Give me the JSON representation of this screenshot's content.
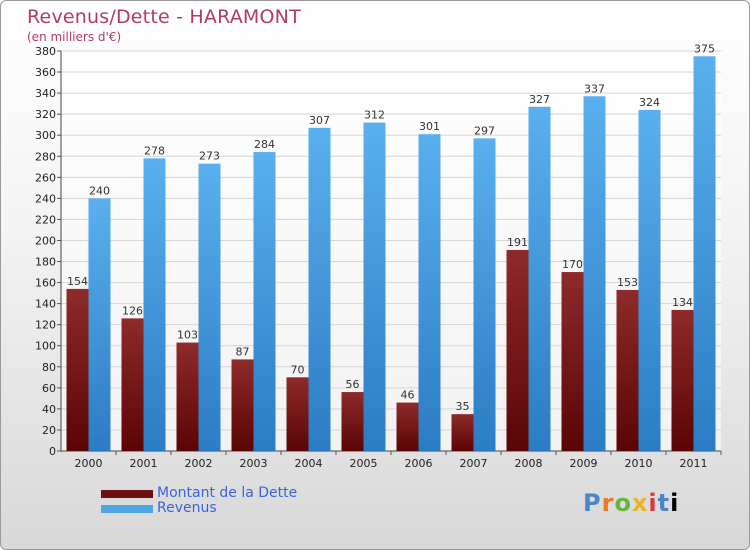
{
  "header": {
    "title": "Revenus/Dette - HARAMONT",
    "subtitle": "(en milliers d'€)"
  },
  "legend": {
    "items": [
      {
        "label": "Montant de la Dette",
        "color": "#6b0f0f"
      },
      {
        "label": "Revenus",
        "color": "#4ea6e6"
      }
    ]
  },
  "logo": {
    "text": "Proxiti"
  },
  "chart_data": {
    "type": "bar",
    "title": "Revenus/Dette - HARAMONT",
    "subtitle": "(en milliers d'€)",
    "categories": [
      "2000",
      "2001",
      "2002",
      "2003",
      "2004",
      "2005",
      "2006",
      "2007",
      "2008",
      "2009",
      "2010",
      "2011"
    ],
    "series": [
      {
        "name": "Montant de la Dette",
        "color": "#7a1a1a",
        "values": [
          154,
          126,
          103,
          87,
          70,
          56,
          46,
          35,
          191,
          170,
          153,
          134
        ]
      },
      {
        "name": "Revenus",
        "color": "#4ea6e6",
        "values": [
          240,
          278,
          273,
          284,
          307,
          312,
          301,
          297,
          327,
          337,
          324,
          375
        ]
      }
    ],
    "ylim": [
      0,
      380
    ],
    "ytick_step": 20,
    "grid": true,
    "legend_position": "bottom-left"
  }
}
